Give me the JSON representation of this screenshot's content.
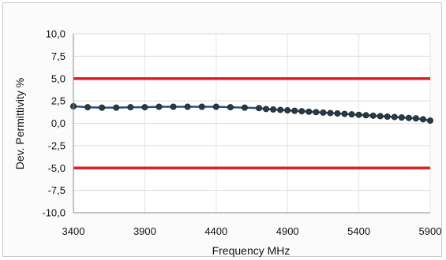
{
  "chart_data": {
    "type": "line",
    "title": "",
    "xlabel": "Frequency MHz",
    "ylabel": "Dev. Permittivity %",
    "xlim": [
      3400,
      5900
    ],
    "ylim": [
      -10.0,
      10.0
    ],
    "x_ticks": [
      "3400",
      "3900",
      "4400",
      "4900",
      "5400",
      "5900"
    ],
    "y_ticks": [
      "10,0",
      "7,5",
      "5,0",
      "2,5",
      "0,0",
      "-2,5",
      "-5,0",
      "-7,5",
      "-10,0"
    ],
    "grid": true,
    "legend": "none",
    "series": [
      {
        "color": "#1f4e8c",
        "marker_color": "#2b3a42",
        "x": [
          3400,
          3500,
          3600,
          3700,
          3800,
          3900,
          4000,
          4100,
          4200,
          4300,
          4400,
          4500,
          4600,
          4700,
          4750,
          4800,
          4850,
          4900,
          4950,
          5000,
          5050,
          5100,
          5150,
          5200,
          5250,
          5300,
          5350,
          5400,
          5450,
          5500,
          5550,
          5600,
          5650,
          5700,
          5750,
          5800,
          5850,
          5900
        ],
        "y": [
          1.9,
          1.8,
          1.75,
          1.75,
          1.8,
          1.8,
          1.85,
          1.85,
          1.85,
          1.85,
          1.85,
          1.8,
          1.75,
          1.7,
          1.6,
          1.55,
          1.5,
          1.45,
          1.4,
          1.35,
          1.3,
          1.25,
          1.2,
          1.15,
          1.1,
          1.05,
          1.0,
          0.95,
          0.9,
          0.85,
          0.8,
          0.75,
          0.7,
          0.65,
          0.6,
          0.55,
          0.45,
          0.3
        ]
      }
    ],
    "reference_lines": [
      {
        "y": 5.0,
        "color": "#e02020"
      },
      {
        "y": -5.0,
        "color": "#e02020"
      }
    ]
  }
}
